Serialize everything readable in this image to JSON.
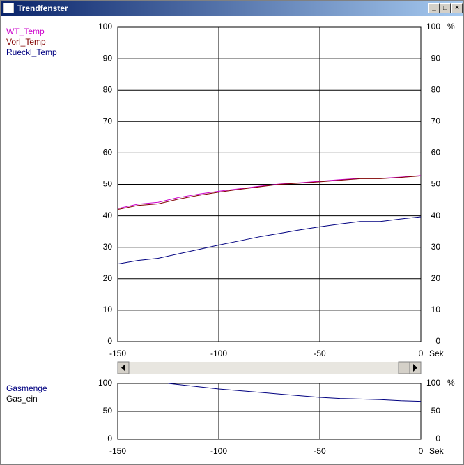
{
  "window": {
    "title": "Trendfenster"
  },
  "chart_data": [
    {
      "type": "line",
      "x": [
        -150,
        -140,
        -130,
        -120,
        -110,
        -100,
        -90,
        -80,
        -70,
        -60,
        -50,
        -40,
        -30,
        -20,
        -10,
        0
      ],
      "series": [
        {
          "name": "WT_Temp",
          "color": "#cc00cc",
          "values": [
            42.3,
            43.7,
            44.3,
            45.8,
            46.9,
            47.8,
            48.6,
            49.4,
            50.1,
            50.5,
            51.0,
            51.5,
            51.9,
            51.9,
            52.3,
            52.8
          ]
        },
        {
          "name": "Vorl_Temp",
          "color": "#800000",
          "values": [
            42.0,
            43.3,
            43.8,
            45.3,
            46.5,
            47.5,
            48.4,
            49.2,
            50.0,
            50.4,
            50.8,
            51.3,
            51.8,
            51.8,
            52.2,
            52.7
          ]
        },
        {
          "name": "Rueckl_Temp",
          "color": "#000080",
          "values": [
            24.7,
            25.8,
            26.5,
            27.9,
            29.3,
            30.7,
            32.0,
            33.3,
            34.4,
            35.5,
            36.5,
            37.4,
            38.2,
            38.2,
            39.0,
            39.7
          ]
        }
      ],
      "xlim": [
        -150,
        0
      ],
      "xticks": [
        -150,
        -100,
        -50,
        0
      ],
      "ylim": [
        0,
        100
      ],
      "yticks": [
        0,
        10,
        20,
        30,
        40,
        50,
        60,
        70,
        80,
        90,
        100
      ],
      "x_unit": "Sek",
      "y_unit": "%",
      "grid": true
    },
    {
      "type": "line",
      "x": [
        -125,
        -110,
        -100,
        -90,
        -80,
        -70,
        -60,
        -50,
        -40,
        -30,
        -20,
        -10,
        0
      ],
      "series": [
        {
          "name": "Gasmenge",
          "color": "#000080",
          "values": [
            100,
            94,
            90,
            87,
            84,
            81,
            78,
            75,
            73,
            72,
            71,
            69,
            68
          ]
        },
        {
          "name": "Gas_ein",
          "color": "#000000",
          "values": [
            0,
            0,
            0,
            0,
            0,
            0,
            0,
            0,
            0,
            0,
            0,
            0,
            0
          ]
        }
      ],
      "xlim": [
        -150,
        0
      ],
      "xticks": [
        -150,
        -100,
        -50,
        0
      ],
      "ylim": [
        0,
        100
      ],
      "yticks": [
        0,
        50,
        100
      ],
      "x_unit": "Sek",
      "y_unit": "%",
      "grid": true
    }
  ]
}
